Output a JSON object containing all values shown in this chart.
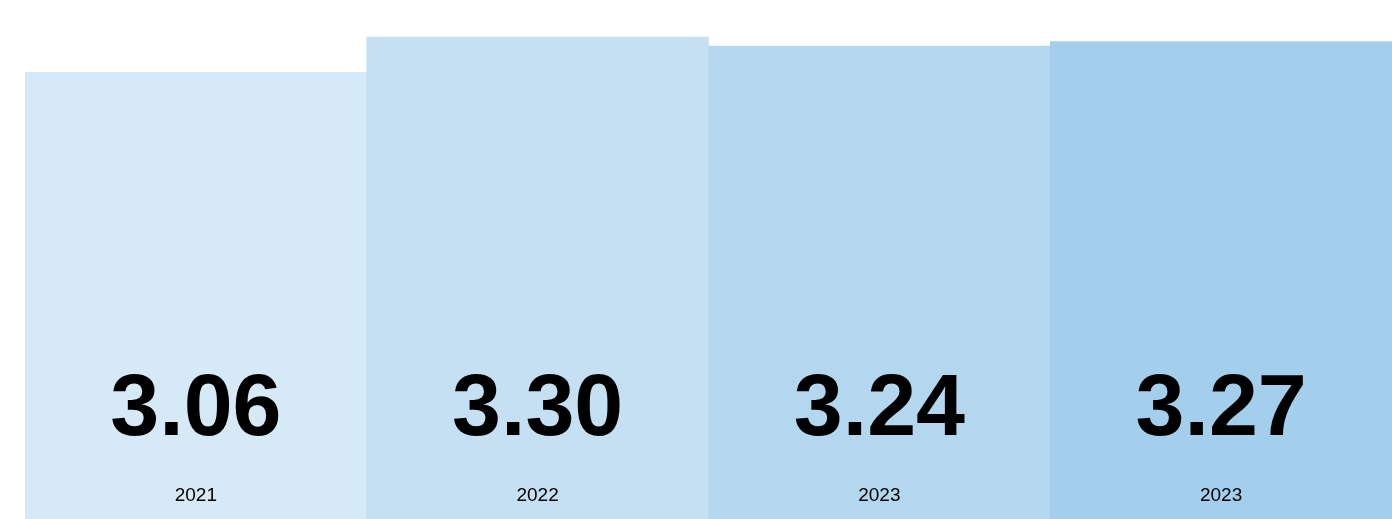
{
  "chart_data": {
    "type": "bar",
    "categories": [
      "2021",
      "2022",
      "2023",
      "2023"
    ],
    "values": [
      3.06,
      3.3,
      3.24,
      3.27
    ],
    "value_labels": [
      "3.06",
      "3.30",
      "3.24",
      "3.27"
    ],
    "colors": [
      "#d6e9f7",
      "#c5e0f3",
      "#b4d7f0",
      "#a3cfed"
    ]
  }
}
